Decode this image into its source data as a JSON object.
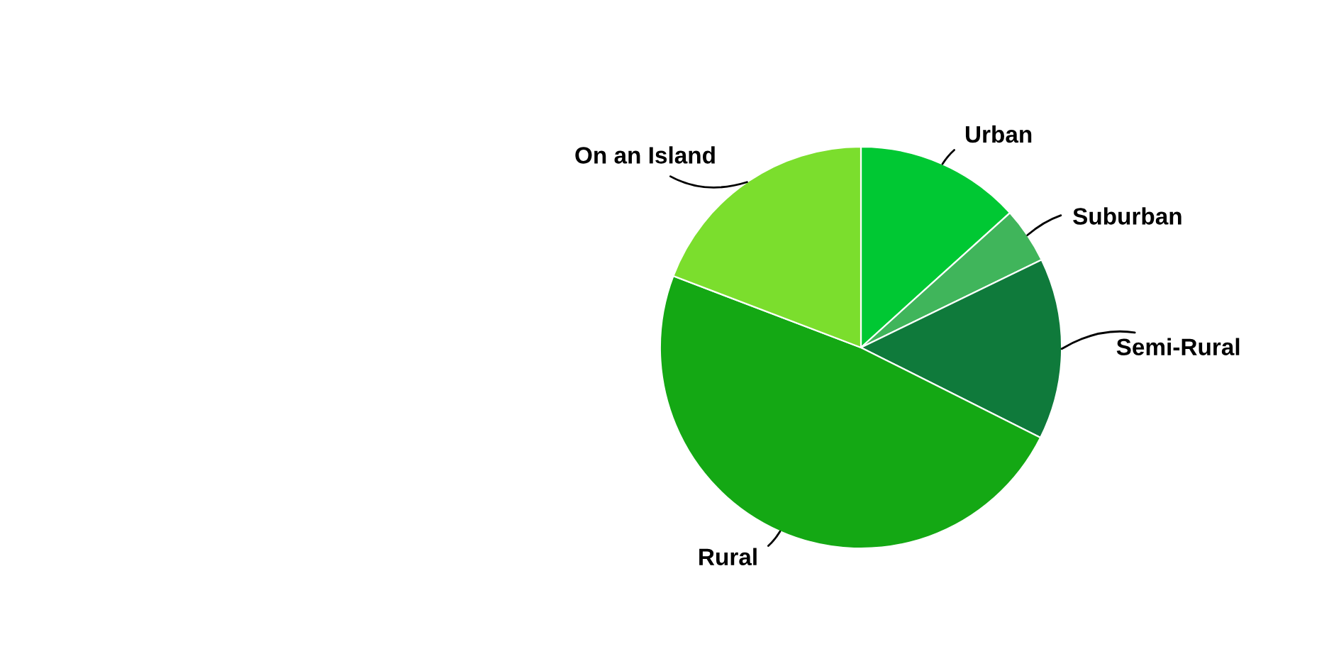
{
  "chart_data": {
    "type": "pie",
    "categories": [
      "Urban",
      "Suburban",
      "Semi-Rural",
      "Rural",
      "On an Island"
    ],
    "values": [
      13.3,
      4.5,
      14.6,
      48.4,
      19.2
    ],
    "colors": [
      "#00c833",
      "#40b55b",
      "#0f7a3b",
      "#14a814",
      "#7bde2d"
    ],
    "legend": false
  }
}
